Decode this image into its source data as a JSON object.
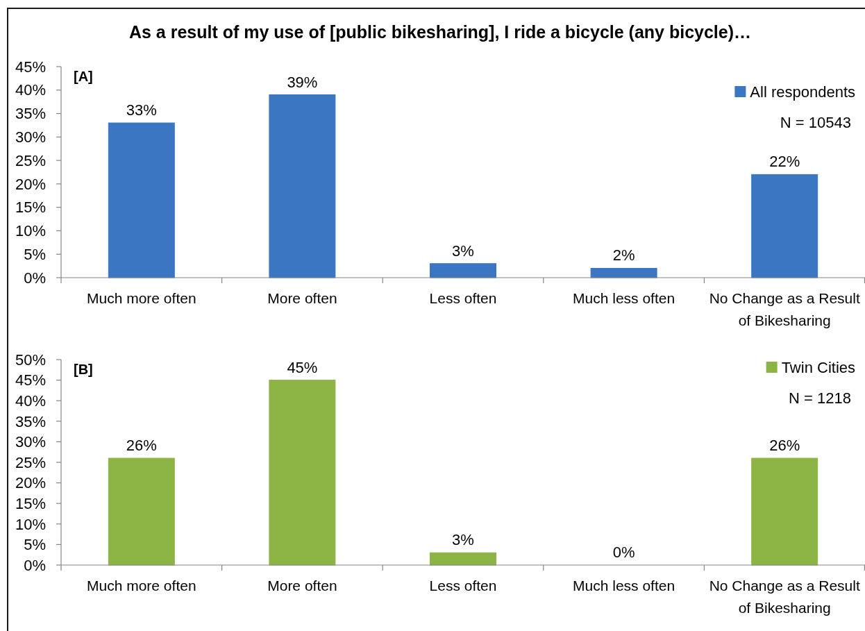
{
  "chart_data": [
    {
      "type": "bar",
      "title": "As a result of my use of [public bikesharing], I ride a bicycle (any bicycle)…",
      "categories": [
        "Much more often",
        "More often",
        "Less often",
        "Much less often",
        "No Change as a Result of Bikesharing"
      ],
      "series": [
        {
          "name": "All respondents",
          "color": "#3a76c2",
          "values": [
            33,
            39,
            3,
            2,
            22
          ],
          "value_labels": [
            "33%",
            "39%",
            "3%",
            "2%",
            "22%"
          ]
        }
      ],
      "ylim": [
        0,
        45
      ],
      "yticks": [
        {
          "value": 0,
          "label": "0%"
        },
        {
          "value": 5,
          "label": "5%"
        },
        {
          "value": 10,
          "label": "10%"
        },
        {
          "value": 15,
          "label": "15%"
        },
        {
          "value": 20,
          "label": "20%"
        },
        {
          "value": 25,
          "label": "25%"
        },
        {
          "value": 30,
          "label": "30%"
        },
        {
          "value": 35,
          "label": "35%"
        },
        {
          "value": 40,
          "label": "40%"
        },
        {
          "value": 45,
          "label": "45%"
        }
      ],
      "legend": "top right",
      "annotations": [
        "[A]",
        "N = 10543"
      ]
    },
    {
      "type": "bar",
      "categories": [
        "Much more often",
        "More often",
        "Less often",
        "Much less often",
        "No Change as a Result of Bikesharing"
      ],
      "series": [
        {
          "name": "Twin Cities",
          "color": "#8cb444",
          "values": [
            26,
            45,
            3,
            0,
            26
          ],
          "value_labels": [
            "26%",
            "45%",
            "3%",
            "0%",
            "26%"
          ]
        }
      ],
      "ylim": [
        0,
        50
      ],
      "yticks": [
        {
          "value": 0,
          "label": "0%"
        },
        {
          "value": 5,
          "label": "5%"
        },
        {
          "value": 10,
          "label": "10%"
        },
        {
          "value": 15,
          "label": "15%"
        },
        {
          "value": 20,
          "label": "20%"
        },
        {
          "value": 25,
          "label": "25%"
        },
        {
          "value": 30,
          "label": "30%"
        },
        {
          "value": 35,
          "label": "35%"
        },
        {
          "value": 40,
          "label": "40%"
        },
        {
          "value": 45,
          "label": "45%"
        },
        {
          "value": 50,
          "label": "50%"
        }
      ],
      "legend": "top right",
      "annotations": [
        "[B]",
        "N = 1218"
      ]
    }
  ]
}
